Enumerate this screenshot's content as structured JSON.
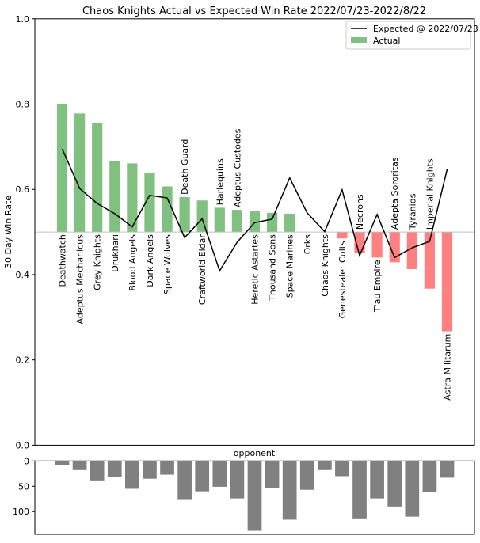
{
  "chart_data": [
    {
      "type": "bar",
      "title": "Chaos Knights Actual vs Expected Win Rate 2022/07/23-2022/8/22",
      "xlabel": "",
      "ylabel": "30 Day Win Rate",
      "ylim": [
        0.0,
        1.0
      ],
      "baseline": 0.5,
      "yticks": [
        "0.0",
        "0.2",
        "0.4",
        "0.6",
        "0.8",
        "1.0"
      ],
      "ytick_values": [
        0.0,
        0.2,
        0.4,
        0.6,
        0.8,
        1.0
      ],
      "grid": false,
      "legend_position": "top-right",
      "categories": [
        "Deathwatch",
        "Adeptus Mechanicus",
        "Grey Knights",
        "Drukhari",
        "Blood Angels",
        "Dark Angels",
        "Space Wolves",
        "Death Guard",
        "Craftworld Eldar",
        "Harlequins",
        "Adeptus Custodes",
        "Heretic Astartes",
        "Thousand Sons",
        "Space Marines",
        "Orks",
        "Chaos Knights",
        "Genestealer Cults",
        "Necrons",
        "T'au Empire",
        "Adepta Sororitas",
        "Tyranids",
        "Imperial Knights",
        "Astra Militarum"
      ],
      "series": [
        {
          "name": "Actual",
          "kind": "bar",
          "color_positive": "#80c080",
          "color_negative": "#ff8080",
          "values": [
            0.8,
            0.778,
            0.756,
            0.667,
            0.661,
            0.639,
            0.607,
            0.582,
            0.574,
            0.557,
            0.552,
            0.55,
            0.545,
            0.543,
            0.5,
            0.5,
            0.485,
            0.45,
            0.44,
            0.429,
            0.413,
            0.367,
            0.267
          ]
        },
        {
          "name": "Expected @ 2022/07/23",
          "kind": "line",
          "color": "#000000",
          "values": [
            0.695,
            0.602,
            0.567,
            0.543,
            0.512,
            0.586,
            0.58,
            0.487,
            0.531,
            0.409,
            0.476,
            0.522,
            0.53,
            0.627,
            0.545,
            0.501,
            0.599,
            0.445,
            0.541,
            0.44,
            0.463,
            0.478,
            0.647
          ]
        }
      ]
    },
    {
      "type": "bar",
      "title": "opponent",
      "ylabel": "",
      "ylim": [
        145,
        0
      ],
      "yticks": [
        "0",
        "50",
        "100"
      ],
      "ytick_values": [
        0,
        50,
        100
      ],
      "inverted_y": true,
      "color": "#808080",
      "categories_ref": "same as above",
      "values": [
        8,
        18,
        40,
        32,
        55,
        35,
        27,
        77,
        60,
        51,
        74,
        138,
        54,
        116,
        57,
        18,
        30,
        115,
        74,
        90,
        110,
        62,
        33
      ]
    }
  ],
  "legend": {
    "items": [
      {
        "label": "Expected @ 2022/07/23",
        "kind": "line",
        "color": "#000000"
      },
      {
        "label": "Actual",
        "kind": "patch",
        "color": "#80c080"
      }
    ]
  }
}
